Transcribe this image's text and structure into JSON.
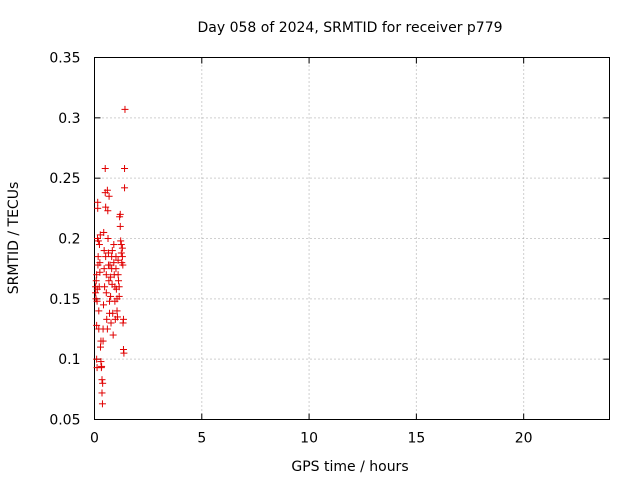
{
  "chart_data": {
    "type": "scatter",
    "title": "Day 058 of 2024, SRMTID for receiver p779",
    "xlabel": "GPS time / hours",
    "ylabel": "SRMTID / TECUs",
    "xlim": [
      0,
      24
    ],
    "ylim": [
      0.05,
      0.35
    ],
    "xticks": [
      0,
      5,
      10,
      15,
      20
    ],
    "yticks": [
      0.05,
      0.1,
      0.15,
      0.2,
      0.25,
      0.3,
      0.35
    ],
    "xtick_labels": [
      "0",
      "5",
      "10",
      "15",
      "20"
    ],
    "ytick_labels": [
      "0.05",
      "0.1",
      "0.15",
      "0.2",
      "0.25",
      "0.3",
      "0.35"
    ],
    "grid": true,
    "marker": "+",
    "color": "#e00000",
    "points": [
      [
        0.05,
        0.16
      ],
      [
        0.05,
        0.155
      ],
      [
        0.07,
        0.15
      ],
      [
        0.08,
        0.165
      ],
      [
        0.1,
        0.17
      ],
      [
        0.1,
        0.128
      ],
      [
        0.1,
        0.1
      ],
      [
        0.12,
        0.093
      ],
      [
        0.12,
        0.148
      ],
      [
        0.13,
        0.158
      ],
      [
        0.14,
        0.2
      ],
      [
        0.15,
        0.23
      ],
      [
        0.15,
        0.225
      ],
      [
        0.16,
        0.178
      ],
      [
        0.17,
        0.185
      ],
      [
        0.18,
        0.198
      ],
      [
        0.2,
        0.14
      ],
      [
        0.2,
        0.125
      ],
      [
        0.22,
        0.16
      ],
      [
        0.23,
        0.195
      ],
      [
        0.25,
        0.18
      ],
      [
        0.25,
        0.172
      ],
      [
        0.27,
        0.203
      ],
      [
        0.28,
        0.11
      ],
      [
        0.3,
        0.115
      ],
      [
        0.3,
        0.098
      ],
      [
        0.32,
        0.093
      ],
      [
        0.33,
        0.094
      ],
      [
        0.35,
        0.083
      ],
      [
        0.35,
        0.072
      ],
      [
        0.37,
        0.063
      ],
      [
        0.38,
        0.08
      ],
      [
        0.4,
        0.115
      ],
      [
        0.4,
        0.125
      ],
      [
        0.42,
        0.145
      ],
      [
        0.43,
        0.205
      ],
      [
        0.45,
        0.19
      ],
      [
        0.45,
        0.175
      ],
      [
        0.47,
        0.16
      ],
      [
        0.5,
        0.258
      ],
      [
        0.5,
        0.238
      ],
      [
        0.52,
        0.226
      ],
      [
        0.52,
        0.185
      ],
      [
        0.55,
        0.17
      ],
      [
        0.55,
        0.155
      ],
      [
        0.57,
        0.133
      ],
      [
        0.6,
        0.125
      ],
      [
        0.6,
        0.24
      ],
      [
        0.62,
        0.223
      ],
      [
        0.63,
        0.2
      ],
      [
        0.65,
        0.188
      ],
      [
        0.65,
        0.178
      ],
      [
        0.67,
        0.165
      ],
      [
        0.68,
        0.235
      ],
      [
        0.7,
        0.148
      ],
      [
        0.7,
        0.138
      ],
      [
        0.72,
        0.178
      ],
      [
        0.75,
        0.168
      ],
      [
        0.75,
        0.152
      ],
      [
        0.77,
        0.13
      ],
      [
        0.8,
        0.185
      ],
      [
        0.8,
        0.175
      ],
      [
        0.82,
        0.162
      ],
      [
        0.83,
        0.19
      ],
      [
        0.85,
        0.138
      ],
      [
        0.87,
        0.12
      ],
      [
        0.9,
        0.195
      ],
      [
        0.9,
        0.18
      ],
      [
        0.92,
        0.17
      ],
      [
        0.95,
        0.16
      ],
      [
        0.95,
        0.148
      ],
      [
        0.97,
        0.133
      ],
      [
        1.0,
        0.185
      ],
      [
        1.0,
        0.175
      ],
      [
        1.02,
        0.158
      ],
      [
        1.05,
        0.15
      ],
      [
        1.05,
        0.14
      ],
      [
        1.07,
        0.135
      ],
      [
        1.1,
        0.182
      ],
      [
        1.1,
        0.17
      ],
      [
        1.12,
        0.165
      ],
      [
        1.15,
        0.16
      ],
      [
        1.15,
        0.152
      ],
      [
        1.17,
        0.218
      ],
      [
        1.2,
        0.22
      ],
      [
        1.2,
        0.21
      ],
      [
        1.22,
        0.198
      ],
      [
        1.25,
        0.195
      ],
      [
        1.25,
        0.188
      ],
      [
        1.27,
        0.18
      ],
      [
        1.3,
        0.192
      ],
      [
        1.3,
        0.185
      ],
      [
        1.32,
        0.178
      ],
      [
        1.33,
        0.13
      ],
      [
        1.35,
        0.133
      ],
      [
        1.35,
        0.108
      ],
      [
        1.37,
        0.105
      ],
      [
        1.4,
        0.242
      ],
      [
        1.4,
        0.258
      ],
      [
        1.42,
        0.307
      ]
    ]
  }
}
